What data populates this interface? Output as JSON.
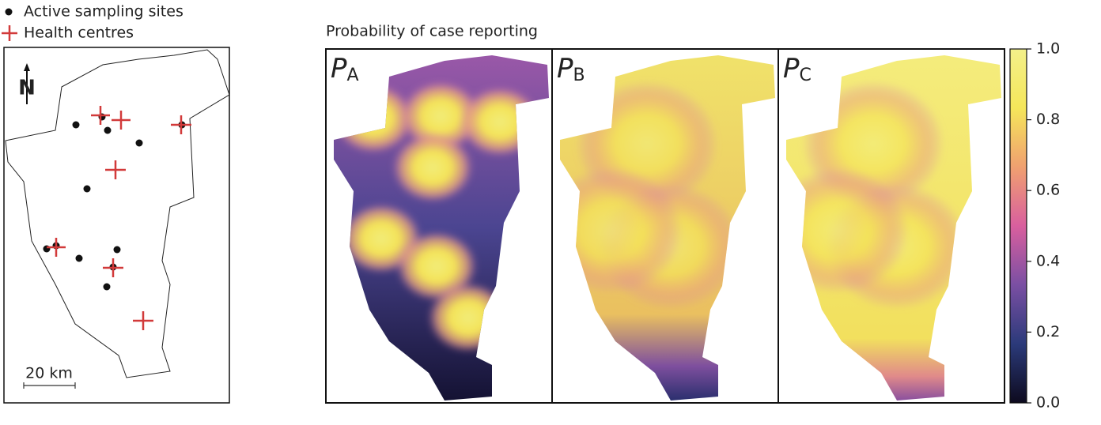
{
  "legend": {
    "sites": "Active sampling sites",
    "centres": "Health centres"
  },
  "north": "N",
  "scale_bar": "20 km",
  "title": "Probability of case reporting",
  "panels": [
    {
      "letter": "P",
      "sub": "A"
    },
    {
      "letter": "P",
      "sub": "B"
    },
    {
      "letter": "P",
      "sub": "C"
    }
  ],
  "colorbar": {
    "lim": [
      0,
      1
    ],
    "ticks": [
      {
        "value": 0,
        "label": "0.0"
      },
      0.2,
      0.4,
      0.6,
      0.8,
      {
        "value": 1,
        "label": "1.0"
      }
    ],
    "colors": [
      "#0d0a1e",
      "#2b3a7a",
      "#7a4fa3",
      "#d95f9e",
      "#f0a070",
      "#f5e65a",
      "#f3f08a"
    ]
  }
}
